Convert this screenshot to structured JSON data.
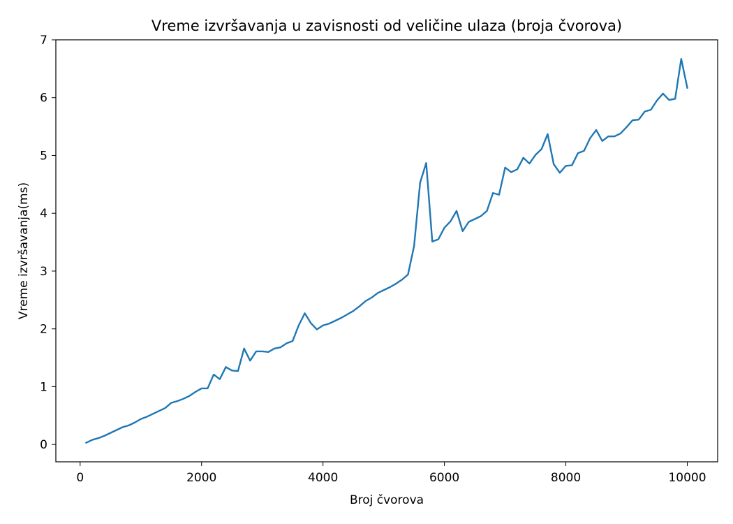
{
  "chart_data": {
    "type": "line",
    "title": "Vreme izvršavanja u zavisnosti od veličine ulaza (broja čvorova)",
    "xlabel": "Broj čvorova",
    "ylabel": "Vreme izvršavanja(ms)",
    "xlim": [
      -400,
      10500
    ],
    "ylim": [
      -0.3,
      7
    ],
    "xticks": [
      0,
      2000,
      4000,
      6000,
      8000,
      10000
    ],
    "xtick_labels": [
      "0",
      "2000",
      "4000",
      "6000",
      "8000",
      "10000"
    ],
    "yticks": [
      0,
      1,
      2,
      3,
      4,
      5,
      6,
      7
    ],
    "ytick_labels": [
      "0",
      "1",
      "2",
      "3",
      "4",
      "5",
      "6",
      "7"
    ],
    "grid": false,
    "legend": "none",
    "color": "#1f77b4",
    "x": [
      100,
      200,
      300,
      400,
      500,
      600,
      700,
      800,
      900,
      1000,
      1100,
      1200,
      1300,
      1400,
      1500,
      1600,
      1700,
      1800,
      1900,
      2000,
      2100,
      2200,
      2300,
      2400,
      2500,
      2600,
      2700,
      2800,
      2900,
      3000,
      3100,
      3200,
      3300,
      3400,
      3500,
      3600,
      3700,
      3800,
      3900,
      4000,
      4100,
      4200,
      4300,
      4400,
      4500,
      4600,
      4700,
      4800,
      4900,
      5000,
      5100,
      5200,
      5300,
      5400,
      5500,
      5600,
      5700,
      5800,
      5900,
      6000,
      6100,
      6200,
      6300,
      6400,
      6500,
      6600,
      6700,
      6800,
      6900,
      7000,
      7100,
      7200,
      7300,
      7400,
      7500,
      7600,
      7700,
      7800,
      7900,
      8000,
      8100,
      8200,
      8300,
      8400,
      8500,
      8600,
      8700,
      8800,
      8900,
      9000,
      9100,
      9200,
      9300,
      9400,
      9500,
      9600,
      9700,
      9800,
      9900,
      10000
    ],
    "series": [
      {
        "values": [
          0.03,
          0.08,
          0.11,
          0.15,
          0.2,
          0.25,
          0.3,
          0.33,
          0.38,
          0.44,
          0.48,
          0.53,
          0.58,
          0.63,
          0.72,
          0.75,
          0.79,
          0.84,
          0.91,
          0.97,
          0.97,
          1.21,
          1.13,
          1.34,
          1.28,
          1.27,
          1.66,
          1.45,
          1.61,
          1.61,
          1.6,
          1.66,
          1.68,
          1.75,
          1.79,
          2.06,
          2.27,
          2.1,
          1.99,
          2.06,
          2.09,
          2.14,
          2.19,
          2.25,
          2.31,
          2.39,
          2.48,
          2.54,
          2.62,
          2.67,
          2.72,
          2.78,
          2.85,
          2.94,
          3.43,
          4.53,
          4.87,
          3.51,
          3.55,
          3.75,
          3.86,
          4.04,
          3.69,
          3.85,
          3.9,
          3.95,
          4.04,
          4.35,
          4.32,
          4.79,
          4.71,
          4.76,
          4.96,
          4.86,
          5.01,
          5.11,
          5.37,
          4.85,
          4.7,
          4.82,
          4.83,
          5.04,
          5.08,
          5.3,
          5.44,
          5.25,
          5.33,
          5.33,
          5.38,
          5.49,
          5.61,
          5.62,
          5.76,
          5.79,
          5.95,
          6.07,
          5.96,
          5.98,
          6.67,
          6.17
        ]
      }
    ]
  }
}
